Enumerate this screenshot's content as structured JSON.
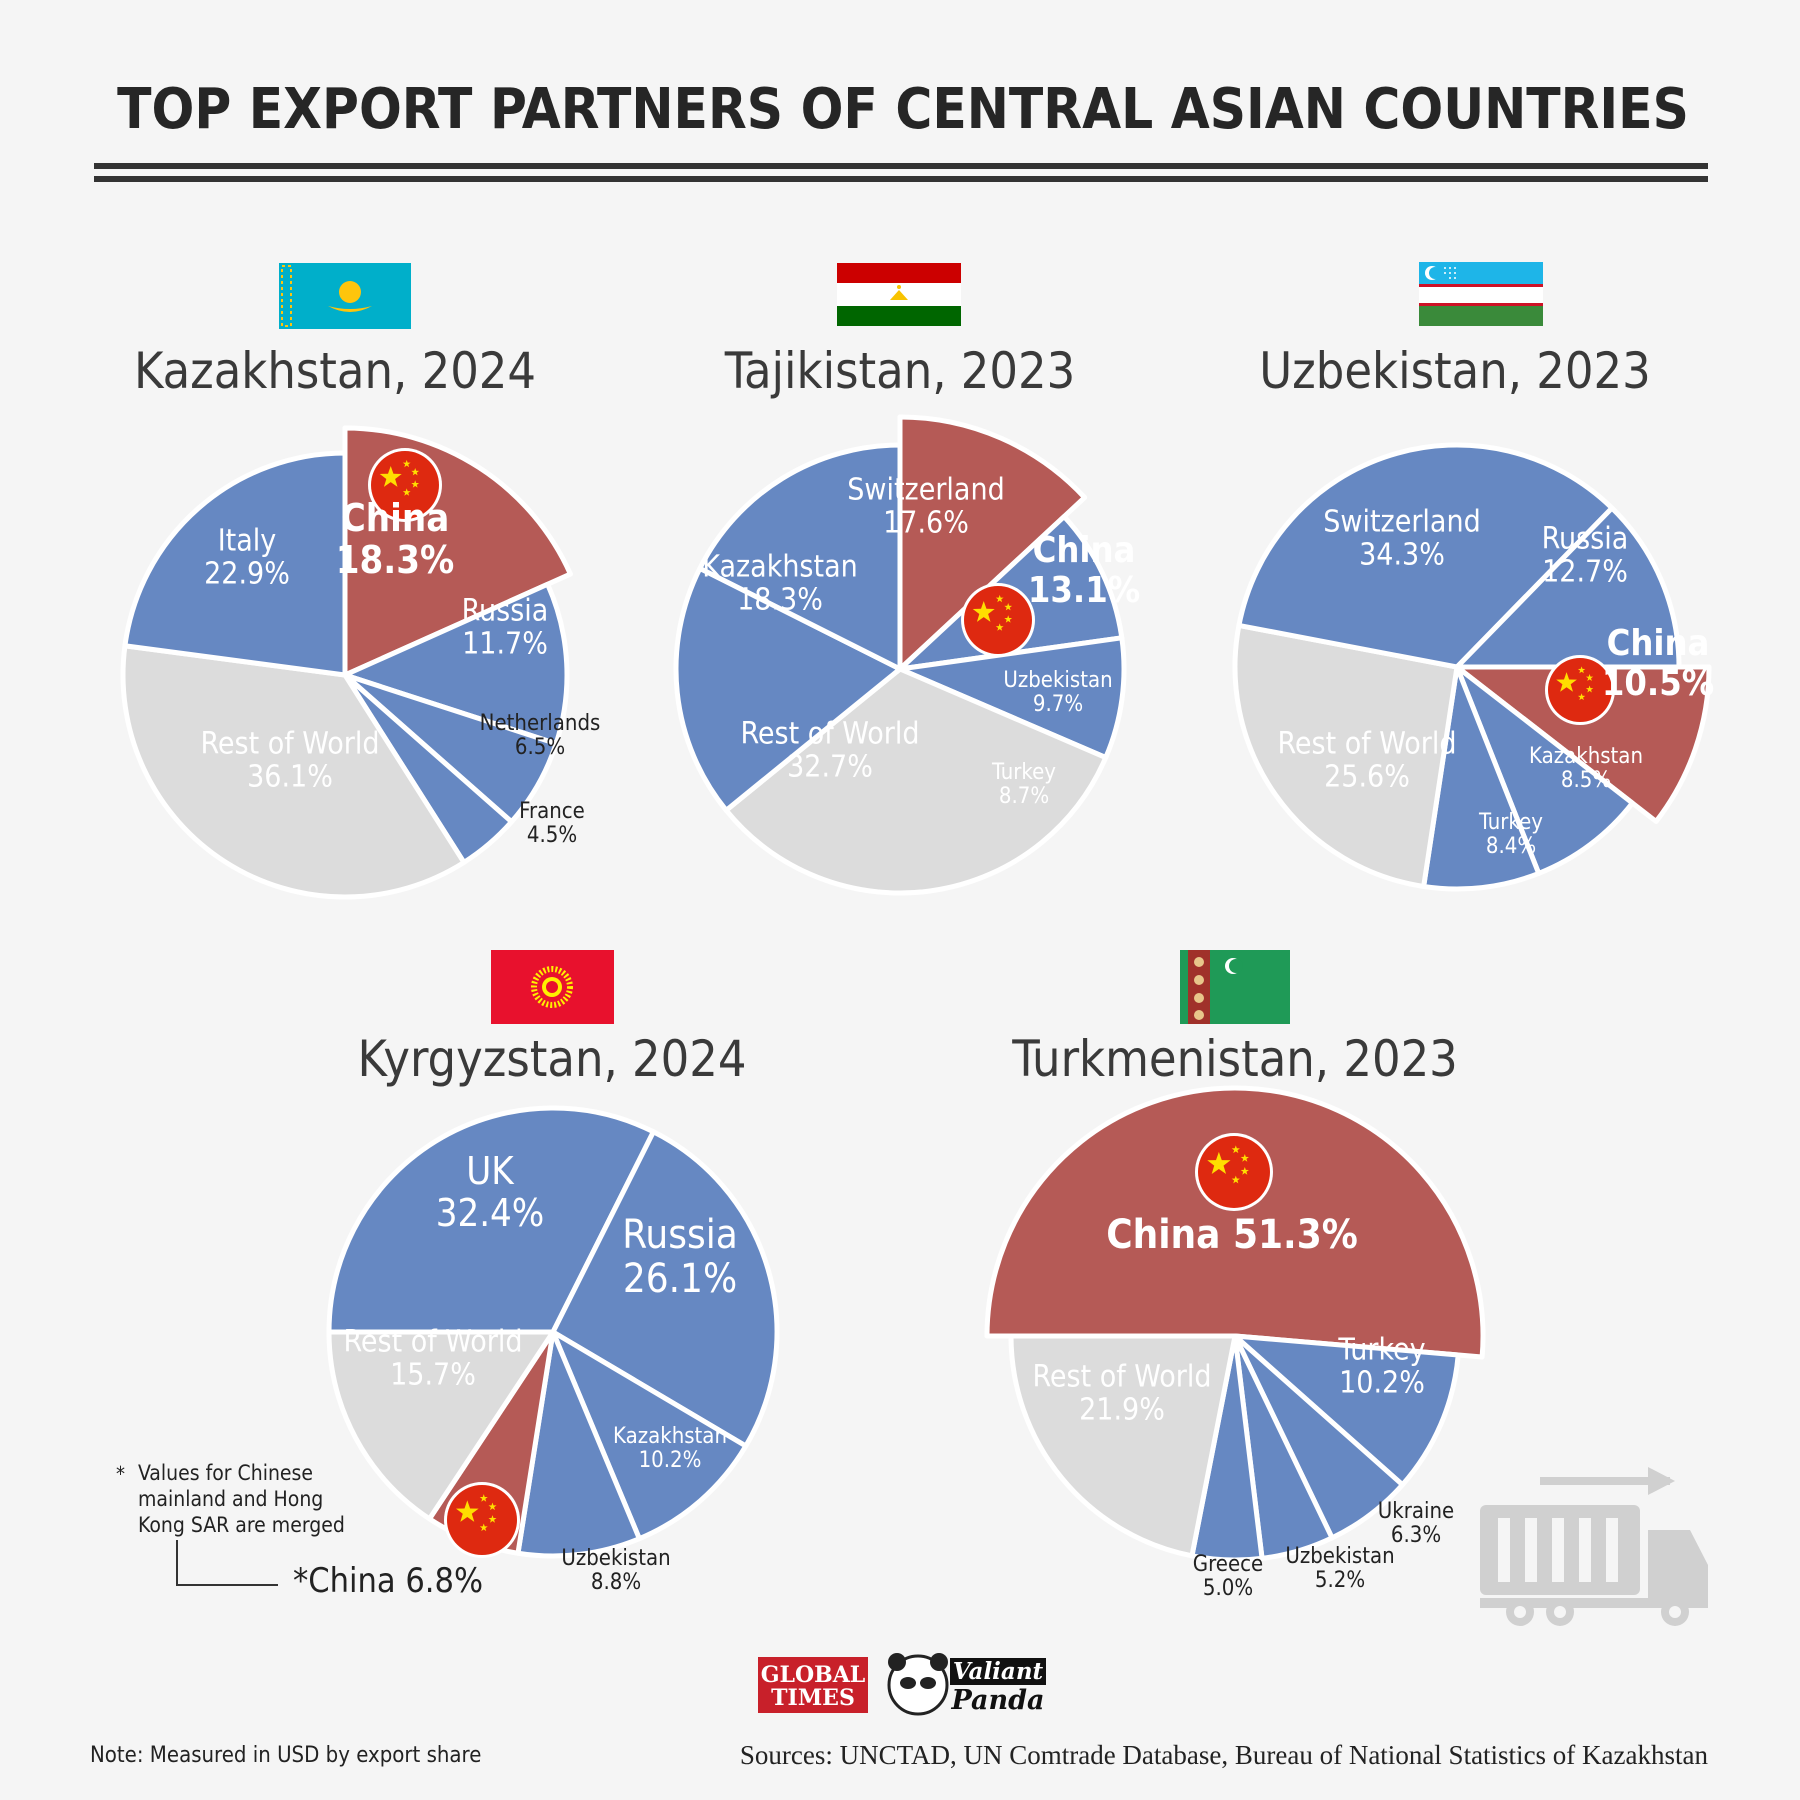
{
  "title": "TOP EXPORT PARTNERS OF CENTRAL ASIAN COUNTRIES",
  "colors": {
    "partner": "#6688c2",
    "china": "#b55a56",
    "rest": "#dcdcdc",
    "china_red": "#de2910",
    "china_star": "#ffde00"
  },
  "chart_data": [
    {
      "type": "pie",
      "title": "Kazakhstan, 2024",
      "flag": "kazakhstan-flag",
      "slices": [
        {
          "label": "China",
          "value": 18.3,
          "value_label": "18.3%",
          "highlight": true
        },
        {
          "label": "Russia",
          "value": 11.7,
          "value_label": "11.7%"
        },
        {
          "label": "Netherlands",
          "value": 6.5,
          "value_label": "6.5%"
        },
        {
          "label": "France",
          "value": 4.5,
          "value_label": "4.5%"
        },
        {
          "label": "Rest of World",
          "value": 36.1,
          "value_label": "36.1%",
          "rest": true
        },
        {
          "label": "Italy",
          "value": 22.9,
          "value_label": "22.9%"
        }
      ]
    },
    {
      "type": "pie",
      "title": "Tajikistan, 2023",
      "flag": "tajikistan-flag",
      "slices": [
        {
          "label": "China",
          "value": 13.1,
          "value_label": "13.1%",
          "highlight": true
        },
        {
          "label": "Uzbekistan",
          "value": 9.7,
          "value_label": "9.7%"
        },
        {
          "label": "Turkey",
          "value": 8.7,
          "value_label": "8.7%"
        },
        {
          "label": "Rest of World",
          "value": 32.7,
          "value_label": "32.7%",
          "rest": true
        },
        {
          "label": "Kazakhstan",
          "value": 18.3,
          "value_label": "18.3%"
        },
        {
          "label": "Switzerland",
          "value": 17.6,
          "value_label": "17.6%"
        }
      ]
    },
    {
      "type": "pie",
      "title": "Uzbekistan, 2023",
      "flag": "uzbekistan-flag",
      "slices": [
        {
          "label": "China",
          "value": 10.5,
          "value_label": "10.5%",
          "highlight": true
        },
        {
          "label": "Kazakhstan",
          "value": 8.5,
          "value_label": "8.5%"
        },
        {
          "label": "Turkey",
          "value": 8.4,
          "value_label": "8.4%"
        },
        {
          "label": "Rest of World",
          "value": 25.6,
          "value_label": "25.6%",
          "rest": true
        },
        {
          "label": "Switzerland",
          "value": 34.3,
          "value_label": "34.3%"
        },
        {
          "label": "Russia",
          "value": 12.7,
          "value_label": "12.7%"
        }
      ]
    },
    {
      "type": "pie",
      "title": "Kyrgyzstan, 2024",
      "flag": "kyrgyzstan-flag",
      "slices": [
        {
          "label": "UK",
          "value": 32.4,
          "value_label": "32.4%"
        },
        {
          "label": "Russia",
          "value": 26.1,
          "value_label": "26.1%"
        },
        {
          "label": "Kazakhstan",
          "value": 10.2,
          "value_label": "10.2%"
        },
        {
          "label": "Uzbekistan",
          "value": 8.8,
          "value_label": "8.8%"
        },
        {
          "label": "*China",
          "value": 6.8,
          "value_label": "6.8%",
          "highlight": true
        },
        {
          "label": "Rest of World",
          "value": 15.7,
          "value_label": "15.7%",
          "rest": true
        }
      ],
      "footnote_marker": "*",
      "footnote": [
        "Values for Chinese",
        "mainland and Hong",
        "Kong SAR are merged"
      ]
    },
    {
      "type": "pie",
      "title": "Turkmenistan, 2023",
      "flag": "turkmenistan-flag",
      "slices": [
        {
          "label": "China",
          "value": 51.3,
          "value_label": "51.3%",
          "highlight": true
        },
        {
          "label": "Turkey",
          "value": 10.2,
          "value_label": "10.2%"
        },
        {
          "label": "Ukraine",
          "value": 6.3,
          "value_label": "6.3%"
        },
        {
          "label": "Uzbekistan",
          "value": 5.2,
          "value_label": "5.2%"
        },
        {
          "label": "Greece",
          "value": 5.0,
          "value_label": "5.0%"
        },
        {
          "label": "Rest of World",
          "value": 21.9,
          "value_label": "21.9%",
          "rest": true
        }
      ]
    }
  ],
  "logos": {
    "global_times_line1": "GLOBAL",
    "global_times_line2": "TIMES",
    "valiant_line1": "Valiant",
    "valiant_line2": "Panda"
  },
  "note": "Note: Measured in USD by export share",
  "sources": "Sources: UNCTAD, UN Comtrade Database, Bureau of National Statistics of Kazakhstan"
}
